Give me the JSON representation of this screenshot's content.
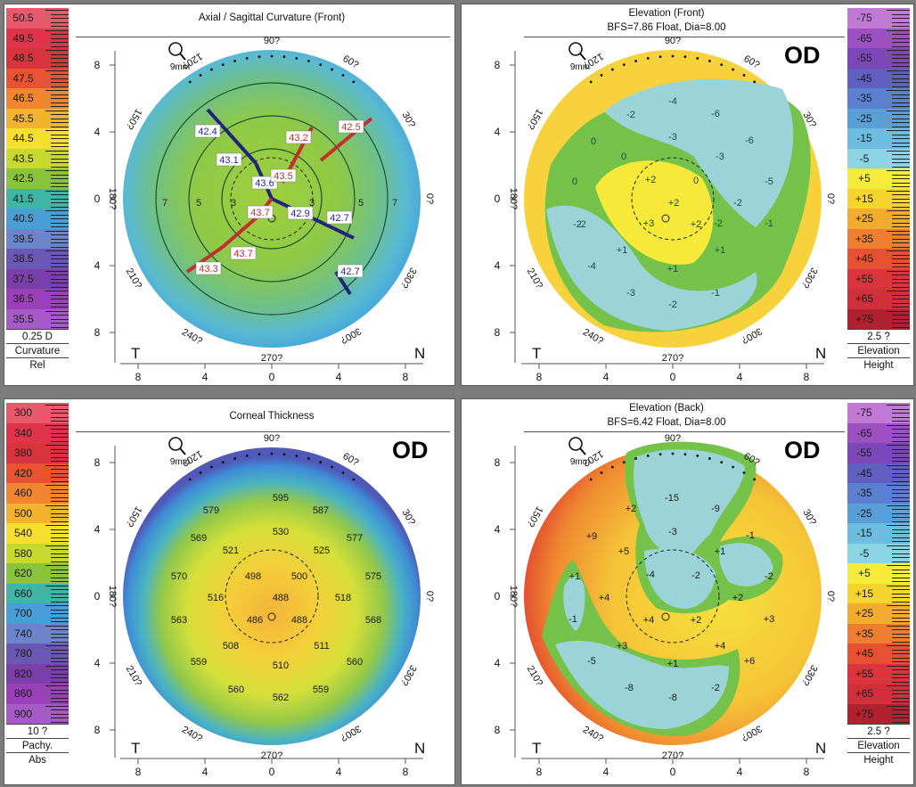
{
  "panels": {
    "axial": {
      "title": "Axial / Sagittal Curvature (Front)",
      "subtitle": "",
      "eye": "",
      "step": "0.25 D",
      "footer": [
        "Curvature",
        "Rel"
      ],
      "scale_labels": [
        "50.5",
        "49.5",
        "48.5",
        "47.5",
        "46.5",
        "45.5",
        "44.5",
        "43.5",
        "42.5",
        "41.5",
        "40.5",
        "39.5",
        "38.5",
        "37.5",
        "36.5",
        "35.5"
      ],
      "scale_colors": [
        "#e8596c",
        "#e0344a",
        "#d8343d",
        "#e95232",
        "#f2852e",
        "#f4b32f",
        "#f6df2e",
        "#c7d92d",
        "#8ac43d",
        "#3fb5a6",
        "#4a9ed8",
        "#6c84cc",
        "#6a58b5",
        "#7b3fa9",
        "#9a41b9",
        "#a65ac6"
      ],
      "zone_labels": [
        "3",
        "5",
        "7",
        "3",
        "5",
        "7"
      ],
      "readings": [
        {
          "v": "42.4",
          "c": "blue"
        },
        {
          "v": "43.1",
          "c": "blue"
        },
        {
          "v": "43.6",
          "c": "blue"
        },
        {
          "v": "42.9",
          "c": "blue"
        },
        {
          "v": "42.7",
          "c": "blue"
        },
        {
          "v": "42.7",
          "c": "blue"
        },
        {
          "v": "43.2",
          "c": "red"
        },
        {
          "v": "42.5",
          "c": "red"
        },
        {
          "v": "43.5",
          "c": "red"
        },
        {
          "v": "43.7",
          "c": "red"
        },
        {
          "v": "43.7",
          "c": "red"
        },
        {
          "v": "43.3",
          "c": "red"
        }
      ]
    },
    "elev_front": {
      "title": "Elevation (Front)",
      "subtitle": "BFS=7.86 Float, Dia=8.00",
      "eye": "OD",
      "step": "2.5 ?",
      "footer": [
        "Elevation",
        "Height"
      ],
      "scale_labels": [
        "-75",
        "-65",
        "-55",
        "-45",
        "-35",
        "-25",
        "-15",
        "-5",
        "+5",
        "+15",
        "+25",
        "+35",
        "+45",
        "+55",
        "+65",
        "+75"
      ],
      "scale_colors": [
        "#c07ad6",
        "#9c50c2",
        "#7c48b8",
        "#6060c0",
        "#5c80d0",
        "#5a9ed8",
        "#6cbde0",
        "#8ad4e4",
        "#f7ec3c",
        "#f6d52e",
        "#f3ac2e",
        "#ee7e30",
        "#e85034",
        "#dc343c",
        "#d0303c",
        "#b02230"
      ],
      "values": [
        "-4",
        "-2",
        "-6",
        "-3",
        "0",
        "0",
        "-3",
        "-6",
        "0",
        "+2",
        "0",
        "-5",
        "+2",
        "-2",
        "-2",
        "-2",
        "+3",
        "+2",
        "+1",
        "-1",
        "-4",
        "+1",
        "+1",
        "-3",
        "-1",
        "-2",
        "-2"
      ]
    },
    "thickness": {
      "title": "Corneal Thickness",
      "subtitle": "",
      "eye": "OD",
      "step": "10 ?",
      "footer": [
        "Pachy.",
        "Abs"
      ],
      "scale_labels": [
        "300",
        "340",
        "380",
        "420",
        "460",
        "500",
        "540",
        "580",
        "620",
        "660",
        "700",
        "740",
        "780",
        "820",
        "860",
        "900"
      ],
      "scale_colors": [
        "#e8596c",
        "#e0344a",
        "#d8343d",
        "#e95232",
        "#f2852e",
        "#f4b32f",
        "#f6df2e",
        "#c7d92d",
        "#8ac43d",
        "#3fb5a6",
        "#4a9ed8",
        "#6c84cc",
        "#6a58b5",
        "#7b3fa9",
        "#9a41b9",
        "#a65ac6"
      ],
      "values": [
        "595",
        "579",
        "587",
        "530",
        "569",
        "577",
        "521",
        "525",
        "570",
        "498",
        "500",
        "575",
        "516",
        "488",
        "518",
        "563",
        "486",
        "488",
        "568",
        "508",
        "511",
        "559",
        "560",
        "510",
        "560",
        "562",
        "559"
      ]
    },
    "elev_back": {
      "title": "Elevation (Back)",
      "subtitle": "BFS=6.42 Float, Dia=8.00",
      "eye": "OD",
      "step": "2.5 ?",
      "footer": [
        "Elevation",
        "Height"
      ],
      "scale_labels": [
        "-75",
        "-65",
        "-55",
        "-45",
        "-35",
        "-25",
        "-15",
        "-5",
        "+5",
        "+15",
        "+25",
        "+35",
        "+45",
        "+55",
        "+65",
        "+75"
      ],
      "scale_colors": [
        "#c07ad6",
        "#9c50c2",
        "#7c48b8",
        "#6060c0",
        "#5c80d0",
        "#5a9ed8",
        "#6cbde0",
        "#8ad4e4",
        "#f7ec3c",
        "#f6d52e",
        "#f3ac2e",
        "#ee7e30",
        "#e85034",
        "#dc343c",
        "#d0303c",
        "#b02230"
      ],
      "values": [
        "-15",
        "+2",
        "-9",
        "+9",
        "-3",
        "-1",
        "+5",
        "+1",
        "-2",
        "-4",
        "-2",
        "+1",
        "+4",
        "+2",
        "-1",
        "+4",
        "+2",
        "+3",
        "+3",
        "+4",
        "-5",
        "+6",
        "+1",
        "-8",
        "-8",
        "-2"
      ]
    }
  },
  "map_common": {
    "zoom_icon": "magnifier-icon",
    "zoom_label": "9mm",
    "angles": {
      "a90": "90?",
      "a60": "60?",
      "a30": "30?",
      "a0": "0?",
      "a330": "330?",
      "a300": "300?",
      "a270": "270?",
      "a240": "240?",
      "a210": "210?",
      "a180": "180?",
      "a150": "150?",
      "a120": "120?"
    },
    "y_ticks": [
      "8",
      "4",
      "0",
      "4",
      "8"
    ],
    "x_ticks": [
      "8",
      "4",
      "0",
      "4",
      "8"
    ],
    "temporal": "T",
    "nasal": "N"
  }
}
